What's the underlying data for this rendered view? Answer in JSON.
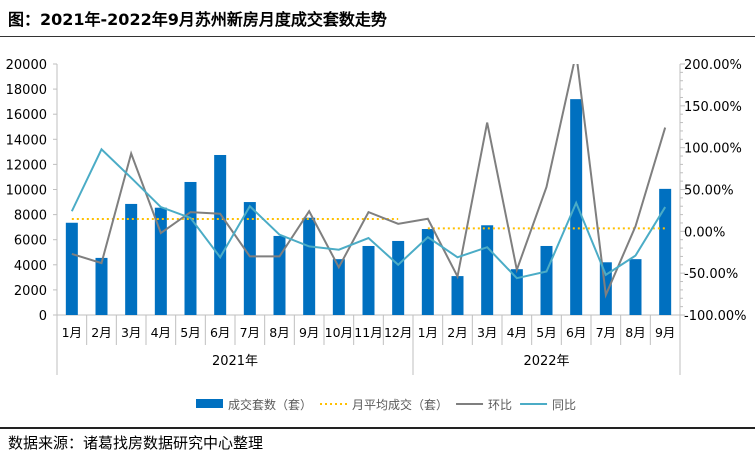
{
  "title": "图：2021年-2022年9月苏州新房月度成交套数走势",
  "source": "数据来源：诸葛找房数据研究中心整理",
  "chart_data": {
    "type": "bar+line",
    "groups": [
      {
        "label": "2021年",
        "categories": [
          "1月",
          "2月",
          "3月",
          "4月",
          "5月",
          "6月",
          "7月",
          "8月",
          "9月",
          "10月",
          "11月",
          "12月"
        ]
      },
      {
        "label": "2022年",
        "categories": [
          "1月",
          "2月",
          "3月",
          "4月",
          "5月",
          "6月",
          "7月",
          "8月",
          "9月"
        ]
      }
    ],
    "left_axis": {
      "ylim": [
        0,
        20000
      ],
      "ticks": [
        "0",
        "2000",
        "4000",
        "6000",
        "8000",
        "10000",
        "12000",
        "14000",
        "16000",
        "18000",
        "20000"
      ]
    },
    "right_axis": {
      "ylim": [
        -100,
        200
      ],
      "ticks": [
        "-100.00%",
        "-50.00%",
        "0.00%",
        "50.00%",
        "100.00%",
        "150.00%",
        "200.00%"
      ]
    },
    "series": [
      {
        "name": "成交套数（套）",
        "type": "bar",
        "axis": "left",
        "color": "#0070c0",
        "values": [
          7350,
          4550,
          8850,
          8550,
          10600,
          12750,
          9000,
          6300,
          7750,
          4450,
          5500,
          5900,
          6850,
          3100,
          7150,
          3650,
          5500,
          17200,
          4200,
          4450,
          10050
        ]
      },
      {
        "name": "月平均成交（套）",
        "type": "dotted-line",
        "axis": "left",
        "color": "#ffc000",
        "values": [
          7650,
          7650,
          7650,
          7650,
          7650,
          7650,
          7650,
          7650,
          7650,
          7650,
          7650,
          7650,
          6900,
          6900,
          6900,
          6900,
          6900,
          6900,
          6900,
          6900,
          6900
        ]
      },
      {
        "name": "环比",
        "type": "line",
        "axis": "right",
        "color": "#7f7f7f",
        "values": [
          -27,
          -38,
          93,
          -2,
          23,
          21,
          -30,
          -30,
          24,
          -43,
          23,
          9,
          15,
          -54,
          130,
          -46,
          53,
          213,
          -76,
          6,
          124
        ]
      },
      {
        "name": "同比",
        "type": "line",
        "axis": "right",
        "color": "#4bacc6",
        "values": [
          24,
          98,
          64,
          29,
          16,
          -31,
          30,
          -4,
          -18,
          -22,
          -8,
          -40,
          -7,
          -31,
          -19,
          -56,
          -48,
          34,
          -52,
          -29,
          29
        ]
      }
    ],
    "legend": "bottom"
  }
}
